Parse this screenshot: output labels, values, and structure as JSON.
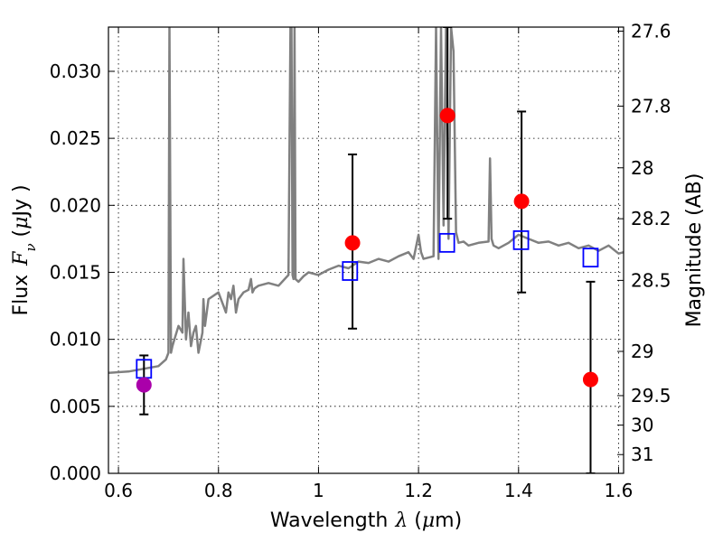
{
  "chart_data": {
    "type": "scatter",
    "title": "",
    "xlabel_text": "Wavelength",
    "xlabel_symbol": "λ",
    "xlabel_unit_open": " (",
    "xlabel_unit_mu": "μ",
    "xlabel_unit_close": "m)",
    "ylabel_text": "Flux",
    "ylabel_symbol": "F",
    "ylabel_sub": "ν",
    "ylabel_unit_open": " (",
    "ylabel_unit_mu": "μ",
    "ylabel_unit_close": "Jy )",
    "y2label": "Magnitude (AB)",
    "xlim": [
      0.58,
      1.61
    ],
    "ylim": [
      0.0,
      0.0333
    ],
    "grid": true,
    "x_ticks": [
      0.6,
      0.8,
      1.0,
      1.2,
      1.4,
      1.6
    ],
    "x_tick_labels": [
      "0.6",
      "0.8",
      "1",
      "1.2",
      "1.4",
      "1.6"
    ],
    "y_ticks": [
      0.0,
      0.005,
      0.01,
      0.015,
      0.02,
      0.025,
      0.03
    ],
    "y_tick_labels": [
      "0.000",
      "0.005",
      "0.010",
      "0.015",
      "0.020",
      "0.025",
      "0.030"
    ],
    "y2_ticks": [
      {
        "label": "27.6",
        "flux": 0.033
      },
      {
        "label": "27.8",
        "flux": 0.0274
      },
      {
        "label": "28",
        "flux": 0.0228
      },
      {
        "label": "28.2",
        "flux": 0.019
      },
      {
        "label": "28.5",
        "flux": 0.0144
      },
      {
        "label": "29",
        "flux": 0.0091
      },
      {
        "label": "29.5",
        "flux": 0.0058
      },
      {
        "label": "30",
        "flux": 0.0036
      },
      {
        "label": "31",
        "flux": 0.0014
      }
    ],
    "model_spectrum": {
      "color": "#808080",
      "x": [
        0.58,
        0.62,
        0.65,
        0.68,
        0.695,
        0.7,
        0.702,
        0.705,
        0.708,
        0.712,
        0.72,
        0.728,
        0.73,
        0.735,
        0.74,
        0.745,
        0.75,
        0.755,
        0.76,
        0.768,
        0.77,
        0.773,
        0.78,
        0.8,
        0.81,
        0.815,
        0.82,
        0.825,
        0.83,
        0.835,
        0.84,
        0.85,
        0.86,
        0.865,
        0.868,
        0.872,
        0.88,
        0.9,
        0.92,
        0.94,
        0.944,
        0.946,
        0.948,
        0.95,
        0.952,
        0.954,
        0.96,
        0.97,
        0.98,
        1.0,
        1.02,
        1.04,
        1.06,
        1.08,
        1.1,
        1.12,
        1.14,
        1.16,
        1.18,
        1.19,
        1.2,
        1.205,
        1.21,
        1.23,
        1.235,
        1.24,
        1.245,
        1.25,
        1.255,
        1.26,
        1.265,
        1.27,
        1.275,
        1.28,
        1.29,
        1.3,
        1.32,
        1.34,
        1.343,
        1.346,
        1.35,
        1.36,
        1.38,
        1.4,
        1.42,
        1.44,
        1.46,
        1.48,
        1.5,
        1.52,
        1.54,
        1.56,
        1.58,
        1.6,
        1.61
      ],
      "y": [
        0.0075,
        0.0076,
        0.0078,
        0.008,
        0.0085,
        0.009,
        0.0333,
        0.009,
        0.0095,
        0.01,
        0.011,
        0.0105,
        0.016,
        0.01,
        0.012,
        0.0095,
        0.0105,
        0.011,
        0.009,
        0.0105,
        0.013,
        0.011,
        0.013,
        0.0135,
        0.0125,
        0.012,
        0.0135,
        0.013,
        0.014,
        0.012,
        0.013,
        0.0135,
        0.0137,
        0.0145,
        0.0135,
        0.0138,
        0.014,
        0.0142,
        0.014,
        0.0148,
        0.0333,
        0.0333,
        0.0148,
        0.0145,
        0.0333,
        0.0145,
        0.0143,
        0.0147,
        0.015,
        0.0148,
        0.0152,
        0.0155,
        0.0153,
        0.0158,
        0.0157,
        0.016,
        0.0158,
        0.0162,
        0.0165,
        0.016,
        0.0178,
        0.0165,
        0.016,
        0.0162,
        0.0333,
        0.016,
        0.0333,
        0.0185,
        0.0333,
        0.0175,
        0.0333,
        0.0315,
        0.018,
        0.0172,
        0.0173,
        0.017,
        0.0172,
        0.0173,
        0.0235,
        0.0175,
        0.017,
        0.0168,
        0.0172,
        0.0178,
        0.0175,
        0.0172,
        0.0173,
        0.017,
        0.0172,
        0.0168,
        0.017,
        0.0166,
        0.017,
        0.0164,
        0.0165
      ]
    },
    "model_photometry": {
      "color": "#0000ff",
      "points": [
        {
          "x": 0.651,
          "y": 0.0078
        },
        {
          "x": 1.063,
          "y": 0.0151
        },
        {
          "x": 1.257,
          "y": 0.0172
        },
        {
          "x": 1.405,
          "y": 0.0174
        },
        {
          "x": 1.544,
          "y": 0.0161
        }
      ]
    },
    "observed": {
      "points": [
        {
          "x": 0.651,
          "y": 0.0066,
          "yerr_low": 0.0044,
          "yerr_high": 0.0088,
          "color": "#aa00aa"
        },
        {
          "x": 1.068,
          "y": 0.0172,
          "yerr_low": 0.0108,
          "yerr_high": 0.0238,
          "color": "#ff0000"
        },
        {
          "x": 1.258,
          "y": 0.0267,
          "yerr_low": 0.019,
          "yerr_high": 0.0333,
          "color": "#ff0000"
        },
        {
          "x": 1.406,
          "y": 0.0203,
          "yerr_low": 0.0135,
          "yerr_high": 0.027,
          "color": "#ff0000"
        },
        {
          "x": 1.544,
          "y": 0.007,
          "yerr_low": 0.0,
          "yerr_high": 0.0143,
          "color": "#ff0000"
        }
      ]
    }
  }
}
